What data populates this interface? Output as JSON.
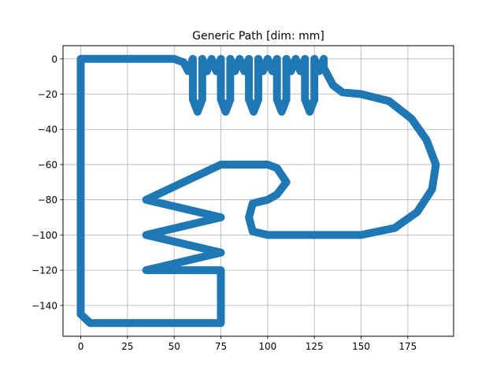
{
  "chart_data": {
    "type": "line",
    "title": "Generic Path [dim: mm]",
    "xlabel": "",
    "ylabel": "",
    "xlim": [
      -9.5,
      199.5
    ],
    "ylim": [
      -157.5,
      7.5
    ],
    "xticks": [
      0,
      25,
      50,
      75,
      100,
      125,
      150,
      175
    ],
    "yticks": [
      0,
      -20,
      -40,
      -60,
      -80,
      -100,
      -120,
      -140
    ],
    "xtick_labels": [
      "0",
      "25",
      "50",
      "75",
      "100",
      "125",
      "150",
      "175"
    ],
    "ytick_labels": [
      "0",
      "−20",
      "−40",
      "−60",
      "−80",
      "−100",
      "−120",
      "−140"
    ],
    "grid": true,
    "series": [
      {
        "color": "#1f77b4",
        "x": [
          0,
          50,
          55,
          57.5,
          60,
          60,
          62.5,
          65,
          65,
          67.5,
          70,
          70,
          72.5,
          75,
          75,
          77.5,
          80,
          80,
          82.5,
          85,
          85,
          87.5,
          90,
          90,
          92.5,
          95,
          95,
          97.5,
          100,
          100,
          102.5,
          105,
          105,
          107.5,
          110,
          110,
          112.5,
          115,
          115,
          117.5,
          120,
          120,
          122.5,
          125,
          125,
          127.5,
          130,
          130,
          135,
          140,
          150,
          165,
          177,
          185,
          190,
          188,
          180,
          168,
          150,
          100,
          92,
          90,
          92,
          100,
          105,
          110,
          105,
          100,
          75,
          35,
          75,
          35,
          75,
          35,
          75,
          75,
          5,
          0,
          0
        ],
        "y": [
          0,
          0,
          -2,
          -7,
          0,
          -23,
          -30,
          -23,
          0,
          -7,
          0,
          0,
          -7,
          0,
          -23,
          -30,
          -23,
          0,
          -7,
          0,
          0,
          -7,
          0,
          -23,
          -30,
          -23,
          0,
          -7,
          0,
          0,
          -7,
          0,
          -23,
          -30,
          -23,
          0,
          -7,
          0,
          0,
          -7,
          0,
          -23,
          -30,
          -23,
          0,
          -7,
          0,
          -5,
          -15,
          -19,
          -20,
          -24,
          -34,
          -46,
          -60,
          -74,
          -87,
          -96,
          -100,
          -100,
          -98,
          -90,
          -82,
          -80,
          -77,
          -70,
          -62,
          -60,
          -60,
          -80,
          -90,
          -100,
          -110,
          -120,
          -120,
          -150,
          -150,
          -145,
          0
        ]
      }
    ]
  }
}
